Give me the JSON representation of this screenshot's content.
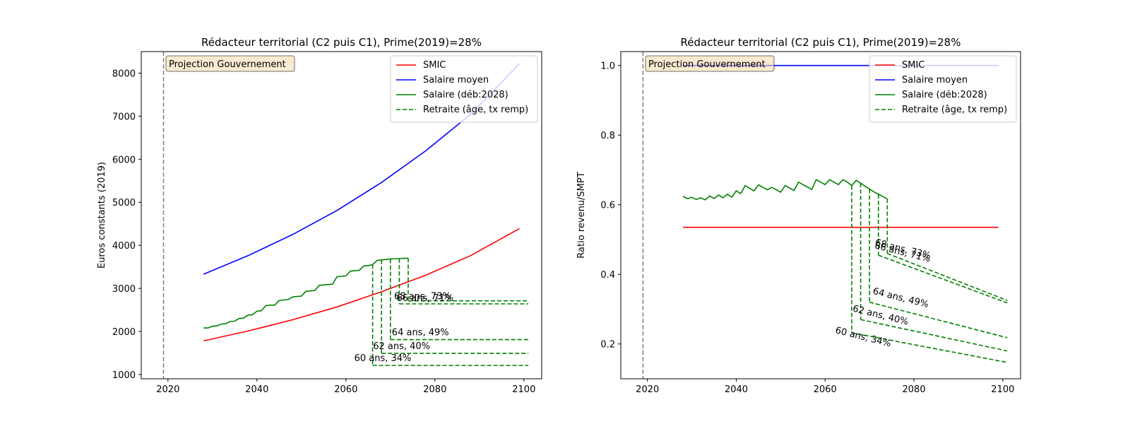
{
  "chart_data": [
    {
      "type": "line",
      "title": "Rédacteur territorial (C2 puis C1), Prime(2019)=28%",
      "xlabel": "",
      "ylabel": "Euros constants (2019)",
      "xlim": [
        2014,
        2104
      ],
      "ylim": [
        900,
        8500
      ],
      "xticks": [
        2020,
        2040,
        2060,
        2080,
        2100
      ],
      "yticks": [
        1000,
        2000,
        3000,
        4000,
        5000,
        6000,
        7000,
        8000
      ],
      "vline": 2019,
      "annotation_box": "Projection Gouvernement",
      "legend_position": "upper right",
      "legend": [
        {
          "label": "SMIC",
          "color": "#ff0000",
          "dash": false
        },
        {
          "label": "Salaire moyen",
          "color": "#0000ff",
          "dash": false
        },
        {
          "label": "Salaire (déb:2028)",
          "color": "#008000",
          "dash": false
        },
        {
          "label": "Retraite (âge, tx remp)",
          "color": "#008000",
          "dash": true
        }
      ],
      "series": [
        {
          "name": "SMIC",
          "color": "#ff0000",
          "x": [
            2028,
            2038,
            2048,
            2058,
            2068,
            2078,
            2088,
            2099
          ],
          "y": [
            1780,
            2010,
            2270,
            2570,
            2920,
            3310,
            3760,
            4390
          ]
        },
        {
          "name": "Salaire moyen",
          "color": "#0000ff",
          "x": [
            2028,
            2038,
            2048,
            2058,
            2068,
            2078,
            2088,
            2099
          ],
          "y": [
            3330,
            3760,
            4250,
            4810,
            5460,
            6200,
            7040,
            8220
          ]
        },
        {
          "name": "Salaire (déb:2028)",
          "color": "#008000",
          "x": [
            2028,
            2029,
            2030,
            2031,
            2032,
            2033,
            2034,
            2035,
            2036,
            2037,
            2038,
            2039,
            2040,
            2041,
            2042,
            2043,
            2044,
            2045,
            2046,
            2047,
            2048,
            2049,
            2050,
            2051,
            2052,
            2053,
            2054,
            2055,
            2056,
            2057,
            2058,
            2059,
            2060,
            2061,
            2062,
            2063,
            2064,
            2065,
            2066,
            2067,
            2068,
            2069,
            2070,
            2071,
            2072,
            2073,
            2074
          ],
          "y": [
            2080,
            2080,
            2120,
            2130,
            2170,
            2180,
            2230,
            2240,
            2300,
            2310,
            2380,
            2390,
            2470,
            2480,
            2600,
            2610,
            2610,
            2720,
            2730,
            2740,
            2800,
            2810,
            2820,
            2930,
            2940,
            2950,
            3070,
            3080,
            3090,
            3100,
            3270,
            3280,
            3290,
            3400,
            3410,
            3420,
            3520,
            3530,
            3550,
            3650,
            3660,
            3670,
            3680,
            3690,
            3690,
            3700,
            3700
          ]
        }
      ],
      "pensions": [
        {
          "label": "60 ans, 34%",
          "x_start": 2066,
          "y_drop_from": 3550,
          "x_end": 2101,
          "y": 1210
        },
        {
          "label": "62 ans, 40%",
          "x_start": 2068,
          "y_drop_from": 3660,
          "x_end": 2101,
          "y": 1490
        },
        {
          "label": "64 ans, 49%",
          "x_start": 2070,
          "y_drop_from": 3680,
          "x_end": 2101,
          "y": 1810
        },
        {
          "label": "66 ans, 71%",
          "x_start": 2072,
          "y_drop_from": 3690,
          "x_end": 2101,
          "y": 2640
        },
        {
          "label": "68 ans, 73%",
          "x_start": 2074,
          "y_drop_from": 3700,
          "x_end": 2101,
          "y": 2710
        }
      ]
    },
    {
      "type": "line",
      "title": "Rédacteur territorial (C2 puis C1), Prime(2019)=28%",
      "xlabel": "",
      "ylabel": "Ratio revenu/SMPT",
      "xlim": [
        2014,
        2104
      ],
      "ylim": [
        0.1,
        1.04
      ],
      "xticks": [
        2020,
        2040,
        2060,
        2080,
        2100
      ],
      "yticks": [
        0.2,
        0.4,
        0.6,
        0.8,
        1.0
      ],
      "vline": 2019,
      "annotation_box": "Projection Gouvernement",
      "legend_position": "upper right",
      "legend": [
        {
          "label": "SMIC",
          "color": "#ff0000",
          "dash": false
        },
        {
          "label": "Salaire moyen",
          "color": "#0000ff",
          "dash": false
        },
        {
          "label": "Salaire (déb:2028)",
          "color": "#008000",
          "dash": false
        },
        {
          "label": "Retraite (âge, tx remp)",
          "color": "#008000",
          "dash": true
        }
      ],
      "series": [
        {
          "name": "SMIC",
          "color": "#ff0000",
          "x": [
            2028,
            2099
          ],
          "y": [
            0.535,
            0.535
          ]
        },
        {
          "name": "Salaire moyen",
          "color": "#0000ff",
          "x": [
            2028,
            2099
          ],
          "y": [
            1.0,
            1.0
          ]
        },
        {
          "name": "Salaire (déb:2028)",
          "color": "#008000",
          "x": [
            2028,
            2029,
            2030,
            2031,
            2032,
            2033,
            2034,
            2035,
            2036,
            2037,
            2038,
            2039,
            2040,
            2041,
            2042,
            2043,
            2044,
            2045,
            2046,
            2047,
            2048,
            2049,
            2050,
            2051,
            2052,
            2053,
            2054,
            2055,
            2056,
            2057,
            2058,
            2059,
            2060,
            2061,
            2062,
            2063,
            2064,
            2065,
            2066,
            2067,
            2068,
            2069,
            2070,
            2071,
            2072,
            2073,
            2074
          ],
          "y": [
            0.624,
            0.618,
            0.621,
            0.615,
            0.62,
            0.614,
            0.625,
            0.618,
            0.628,
            0.62,
            0.63,
            0.622,
            0.64,
            0.632,
            0.655,
            0.647,
            0.64,
            0.657,
            0.65,
            0.643,
            0.65,
            0.643,
            0.636,
            0.655,
            0.648,
            0.641,
            0.665,
            0.658,
            0.651,
            0.644,
            0.672,
            0.665,
            0.658,
            0.672,
            0.665,
            0.658,
            0.672,
            0.665,
            0.655,
            0.67,
            0.662,
            0.653,
            0.645,
            0.637,
            0.63,
            0.624,
            0.617
          ]
        }
      ],
      "pensions": [
        {
          "label": "60 ans, 34%",
          "x_start": 2066,
          "y_drop_from": 0.655,
          "x_end": 2101,
          "y_start": 0.232,
          "y_end": 0.147
        },
        {
          "label": "62 ans, 40%",
          "x_start": 2068,
          "y_drop_from": 0.662,
          "x_end": 2101,
          "y_start": 0.27,
          "y_end": 0.18
        },
        {
          "label": "64 ans, 49%",
          "x_start": 2070,
          "y_drop_from": 0.645,
          "x_end": 2101,
          "y_start": 0.32,
          "y_end": 0.218
        },
        {
          "label": "66 ans, 71%",
          "x_start": 2072,
          "y_drop_from": 0.63,
          "x_end": 2101,
          "y_start": 0.455,
          "y_end": 0.318
        },
        {
          "label": "68 ans, 73%",
          "x_start": 2074,
          "y_drop_from": 0.617,
          "x_end": 2101,
          "y_start": 0.46,
          "y_end": 0.325
        }
      ]
    }
  ]
}
